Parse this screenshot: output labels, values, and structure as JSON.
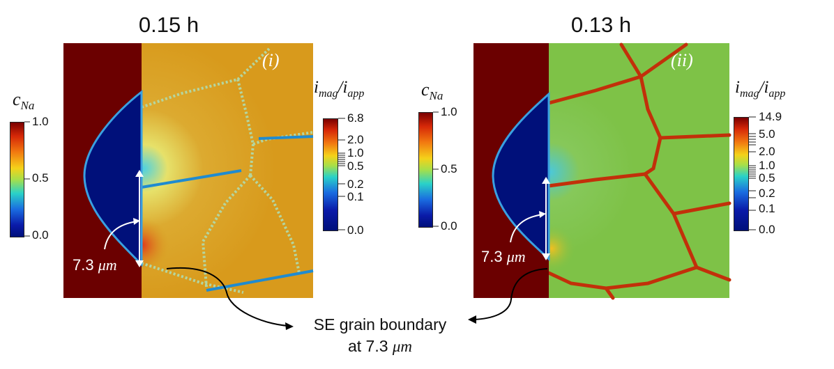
{
  "panels": [
    {
      "title": "0.15 h",
      "tag": "(i)",
      "length_label": "7.3",
      "length_unit": "μm",
      "cna_colorbar": {
        "symbol": "c",
        "subscript": "Na",
        "ticks": [
          "1.0",
          "0.5",
          "0.0"
        ]
      },
      "imag_colorbar": {
        "numerator": "i",
        "numerator_sub": "mag",
        "denominator": "i",
        "denominator_sub": "app",
        "ticks": [
          "6.8",
          "2.0",
          "1.0",
          "0.5",
          "0.2",
          "0.1",
          "0.0"
        ]
      },
      "colors": {
        "electrode": "#6b0000",
        "dendrite": "#00107a",
        "electrolyte": "#d89a1c",
        "boundary_line": "#1f8bd0"
      }
    },
    {
      "title": "0.13 h",
      "tag": "(ii)",
      "length_label": "7.3",
      "length_unit": "μm",
      "cna_colorbar": {
        "symbol": "c",
        "subscript": "Na",
        "ticks": [
          "1.0",
          "0.5",
          "0.0"
        ]
      },
      "imag_colorbar": {
        "numerator": "i",
        "numerator_sub": "mag",
        "denominator": "i",
        "denominator_sub": "app",
        "ticks": [
          "14.9",
          "5.0",
          "2.0",
          "1.0",
          "0.5",
          "0.2",
          "0.1",
          "0.0"
        ]
      },
      "colors": {
        "electrode": "#6b0000",
        "dendrite": "#00107a",
        "electrolyte": "#7ec247",
        "boundary_line": "#c2300a"
      }
    }
  ],
  "annotation": {
    "line1": "SE grain boundary",
    "line2_prefix": "at 7.3",
    "line2_unit": "μm"
  }
}
